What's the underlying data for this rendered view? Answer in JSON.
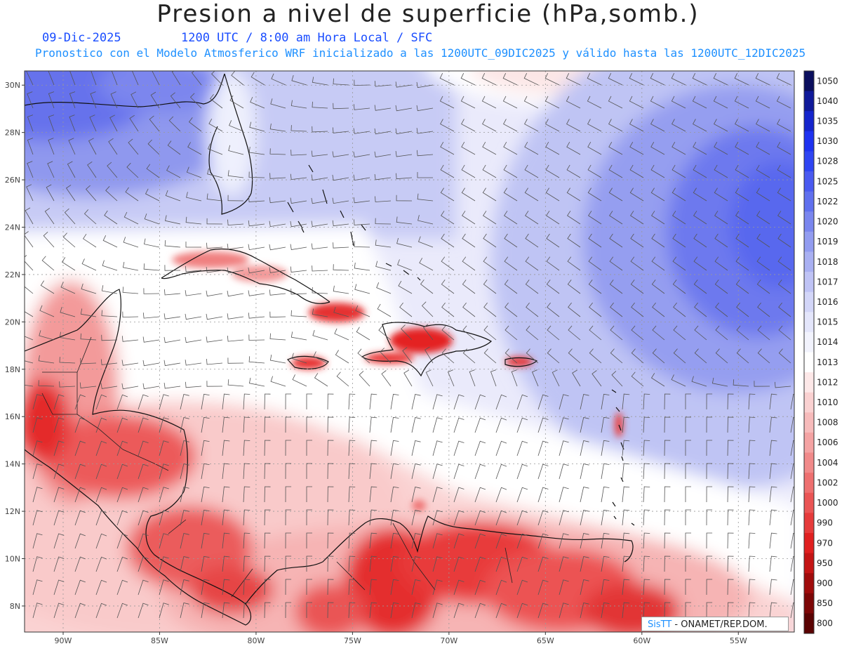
{
  "header": {
    "title": "Presion a nivel de superficie (hPa,somb.)",
    "date": "09-Dic-2025",
    "time": "1200 UTC / 8:00 am Hora Local / SFC",
    "subtitle": "Pronostico con el Modelo Atmosferico WRF inicializado a las 1200UTC_09DIC2025 y válido hasta las  1200UTC_12DIC2025"
  },
  "map": {
    "lon_range": [
      -92,
      -52.1
    ],
    "lat_range": [
      6.9,
      30.6
    ],
    "lon_ticks": [
      "90W",
      "85W",
      "80W",
      "75W",
      "70W",
      "65W",
      "60W",
      "55W"
    ],
    "lon_tick_values": [
      -90,
      -85,
      -80,
      -75,
      -70,
      -65,
      -60,
      -55
    ],
    "lat_ticks": [
      "30N",
      "28N",
      "26N",
      "24N",
      "22N",
      "20N",
      "18N",
      "16N",
      "14N",
      "12N",
      "10N",
      "8N"
    ],
    "lat_tick_values": [
      30,
      28,
      26,
      24,
      22,
      20,
      18,
      16,
      14,
      12,
      10,
      8
    ]
  },
  "colorbar": {
    "labels": [
      "1050",
      "1040",
      "1035",
      "1030",
      "1028",
      "1025",
      "1022",
      "1020",
      "1019",
      "1018",
      "1017",
      "1016",
      "1015",
      "1014",
      "1013",
      "1012",
      "1010",
      "1008",
      "1006",
      "1004",
      "1002",
      "1000",
      "990",
      "970",
      "950",
      "900",
      "850",
      "800"
    ],
    "colors": [
      "#0b0f5e",
      "#101a9a",
      "#1525cc",
      "#1e32f0",
      "#2f45f2",
      "#4a5af0",
      "#6070ee",
      "#7a86ee",
      "#929cf0",
      "#a9b0f2",
      "#bfc3f5",
      "#d3d6f8",
      "#e4e6fb",
      "#f2f3fd",
      "#ffffff",
      "#fde8e8",
      "#fad1d1",
      "#f7bbbb",
      "#f4a3a3",
      "#f18a8a",
      "#ee7070",
      "#ea5555",
      "#e63b3b",
      "#e02020",
      "#c41515",
      "#a00c0c",
      "#7d0707",
      "#5a0303"
    ]
  },
  "credit": {
    "brand": "SisTT",
    "text": " - ONAMET/REP.DOM."
  }
}
